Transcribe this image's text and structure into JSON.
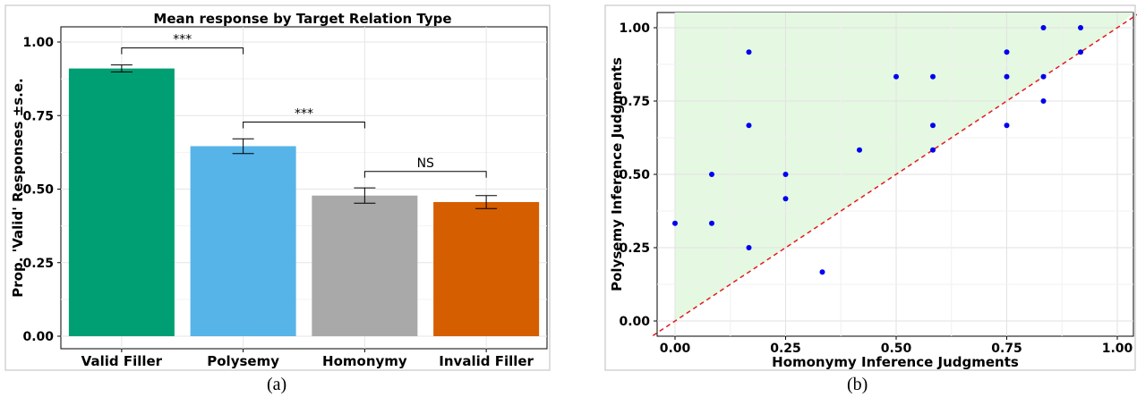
{
  "chart_data": [
    {
      "type": "bar",
      "title": "Mean response by Target Relation Type",
      "ylabel": "Prop. 'Valid' Responses ±s.e.",
      "xlabel": "",
      "ylim": [
        0,
        1.05
      ],
      "yticks": [
        "0.00",
        "0.25",
        "0.50",
        "0.75",
        "1.00"
      ],
      "categories": [
        "Valid Filler",
        "Polysemy",
        "Homonymy",
        "Invalid Filler"
      ],
      "values": [
        0.91,
        0.646,
        0.478,
        0.456
      ],
      "se": [
        0.012,
        0.025,
        0.026,
        0.022
      ],
      "colors": [
        "#009E73",
        "#56B4E9",
        "#A9A9A9",
        "#D55E00"
      ],
      "comparisons": [
        {
          "from": 0,
          "to": 1,
          "y": 0.98,
          "label": "***"
        },
        {
          "from": 1,
          "to": 2,
          "y": 0.728,
          "label": "***"
        },
        {
          "from": 2,
          "to": 3,
          "y": 0.56,
          "label": "NS"
        }
      ],
      "grid": true,
      "caption": "(a)"
    },
    {
      "type": "scatter",
      "xlabel": "Homonymy Inference Judgments",
      "ylabel": "Polysemy Inference Judgments",
      "xlim": [
        -0.05,
        1.05
      ],
      "ylim": [
        -0.05,
        1.05
      ],
      "xticks": [
        "0.00",
        "0.25",
        "0.50",
        "0.75",
        "1.00"
      ],
      "yticks": [
        "0.00",
        "0.25",
        "0.50",
        "0.75",
        "1.00"
      ],
      "point_color": "#0000EE",
      "diagonal_color": "#E41A1C",
      "shade_color": "#E5F8E2",
      "points": [
        [
          0.0,
          0.333
        ],
        [
          0.083,
          0.5
        ],
        [
          0.083,
          0.333
        ],
        [
          0.167,
          0.917
        ],
        [
          0.167,
          0.667
        ],
        [
          0.167,
          0.25
        ],
        [
          0.25,
          0.5
        ],
        [
          0.25,
          0.417
        ],
        [
          0.333,
          0.167
        ],
        [
          0.417,
          0.583
        ],
        [
          0.5,
          0.833
        ],
        [
          0.583,
          0.833
        ],
        [
          0.583,
          0.667
        ],
        [
          0.583,
          0.583
        ],
        [
          0.75,
          0.917
        ],
        [
          0.75,
          0.833
        ],
        [
          0.75,
          0.667
        ],
        [
          0.833,
          1.0
        ],
        [
          0.833,
          0.833
        ],
        [
          0.833,
          0.75
        ],
        [
          0.917,
          1.0
        ],
        [
          0.917,
          0.917
        ]
      ],
      "grid": true,
      "caption": "(b)"
    }
  ]
}
